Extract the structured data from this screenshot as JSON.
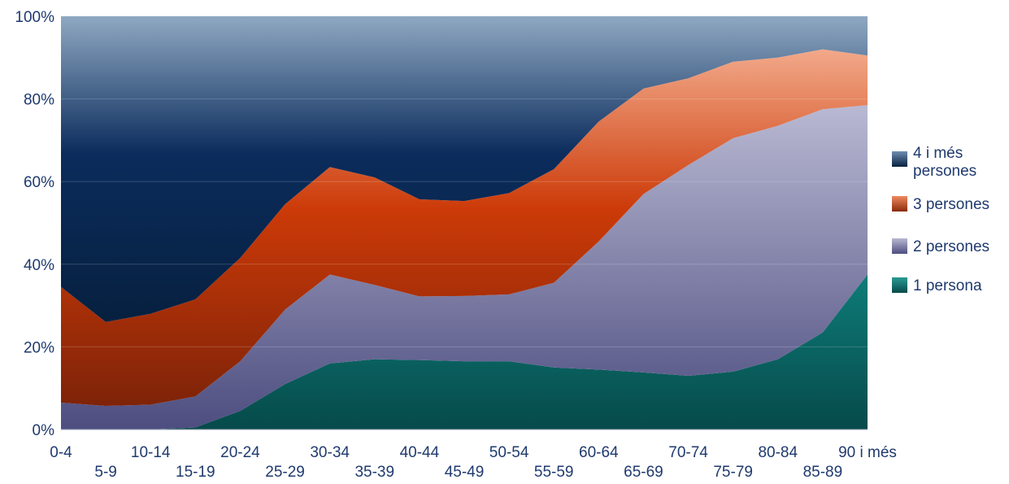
{
  "chart_data": {
    "type": "area",
    "stacked": "percent",
    "categories": [
      "0-4",
      "5-9",
      "10-14",
      "15-19",
      "20-24",
      "25-29",
      "30-34",
      "35-39",
      "40-44",
      "45-49",
      "50-54",
      "55-59",
      "60-64",
      "65-69",
      "70-74",
      "75-79",
      "80-84",
      "85-89",
      "90 i més"
    ],
    "yticks": [
      "0%",
      "20%",
      "40%",
      "60%",
      "80%",
      "100%"
    ],
    "ylim": [
      0,
      100
    ],
    "grid": true,
    "legend_position": "right",
    "series": [
      {
        "name": "1 persona",
        "color": "#0b6b68",
        "values": [
          0,
          0,
          0,
          0.5,
          4.5,
          11,
          16,
          17,
          16.8,
          16.5,
          16.5,
          15,
          14.5,
          13.8,
          13,
          14,
          17,
          23.5,
          37.5
        ]
      },
      {
        "name": "2 persones",
        "color": "#7a7aaa",
        "values": [
          6.5,
          5.7,
          6,
          7.5,
          12,
          18,
          21.5,
          18,
          15.4,
          15.8,
          16.2,
          20.5,
          31,
          43.2,
          51,
          56.5,
          56.5,
          54,
          41
        ]
      },
      {
        "name": "3 persones",
        "color": "#c8400e",
        "values": [
          28,
          20.3,
          22,
          23.5,
          25,
          25.5,
          26,
          26,
          23.5,
          23,
          24.5,
          27.5,
          29,
          25.5,
          21,
          18.5,
          16.5,
          14.5,
          12
        ]
      },
      {
        "name": "4 i més persones",
        "color": "#0a2e5e",
        "values": [
          65.5,
          74,
          72,
          68.5,
          58.5,
          45.5,
          36.5,
          39,
          44.3,
          44.7,
          42.8,
          37,
          25.5,
          17.5,
          15,
          11,
          10,
          8,
          9.5
        ]
      }
    ]
  }
}
